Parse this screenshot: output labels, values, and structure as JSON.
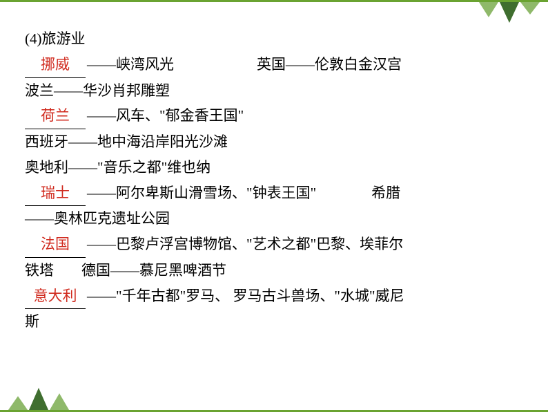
{
  "colors": {
    "border": "#6aa331",
    "tree_dark": "#3f6e2f",
    "tree_light": "#8fb96a",
    "text": "#000000",
    "fill": "#d02a1e",
    "background": "#ffffff"
  },
  "typography": {
    "font_family": "SimSun",
    "font_size_pt": 16,
    "line_height": 1.75
  },
  "heading": "(4)旅游业",
  "blanks": {
    "b1": "挪威",
    "b2": "荷兰",
    "b3": "瑞士",
    "b4": "法国",
    "b5": "意大利"
  },
  "segments": {
    "s1a": "——峡湾风光",
    "s1b": "英国——伦敦白金汉宫",
    "s2": "波兰——华沙肖邦雕塑",
    "s3": "——风车、\"郁金香王国\"",
    "s4": "西班牙——地中海沿岸阳光沙滩",
    "s5": "奥地利——\"音乐之都\"维也纳",
    "s6a": "——阿尔卑斯山滑雪场、\"钟表王国\"",
    "s6b": "希腊",
    "s7": "——奥林匹克遗址公园",
    "s8a": "——巴黎卢浮宫博物馆、\"艺术之都\"巴黎、埃菲尔",
    "s9a": "铁塔",
    "s9b": "德国——慕尼黑啤酒节",
    "s10a": "——\"千年古都\"罗马、 罗马古斗兽场、\"水城\"威尼",
    "s11": "斯"
  }
}
